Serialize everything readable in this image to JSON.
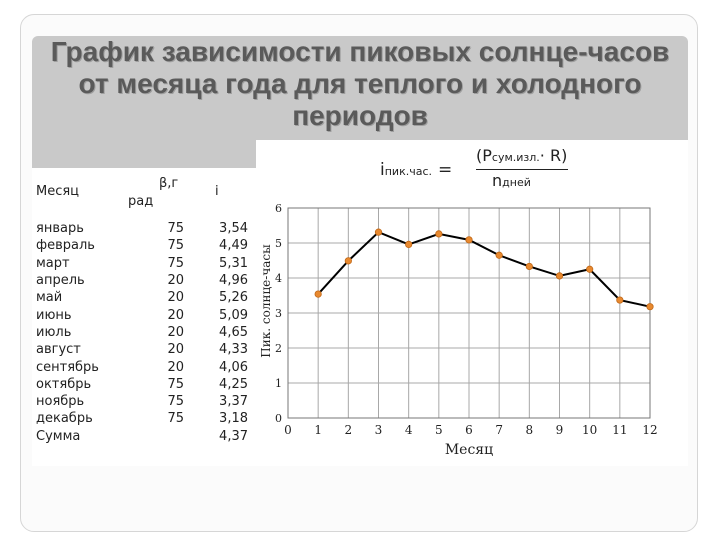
{
  "title": "График зависимости пиковых солнце-часов от месяца года для теплого и холодного периодов",
  "table": {
    "headers": {
      "month": "Месяц",
      "beta_line1": "β,г",
      "beta_line2": "рад",
      "i": "i"
    },
    "rows": [
      {
        "month": "январь",
        "beta": "75",
        "i": "3,54"
      },
      {
        "month": "февраль",
        "beta": "75",
        "i": "4,49"
      },
      {
        "month": "март",
        "beta": "75",
        "i": "5,31"
      },
      {
        "month": "апрель",
        "beta": "20",
        "i": "4,96"
      },
      {
        "month": "май",
        "beta": "20",
        "i": "5,26"
      },
      {
        "month": "июнь",
        "beta": "20",
        "i": "5,09"
      },
      {
        "month": "июль",
        "beta": "20",
        "i": "4,65"
      },
      {
        "month": "август",
        "beta": "20",
        "i": "4,33"
      },
      {
        "month": "сентябрь",
        "beta": "20",
        "i": "4,06"
      },
      {
        "month": "октябрь",
        "beta": "75",
        "i": "4,25"
      },
      {
        "month": "ноябрь",
        "beta": "75",
        "i": "3,37"
      },
      {
        "month": "декабрь",
        "beta": "75",
        "i": "3,18"
      },
      {
        "month": "Сумма",
        "beta": "",
        "i": "4,37"
      }
    ]
  },
  "formula": {
    "lhs_main": "i",
    "lhs_sub": "пик.час.",
    "num_open": "(P",
    "num_sub": "сум.изл.",
    "num_rest": "· R)",
    "den_main": "n",
    "den_sub": "дней"
  },
  "chart_data": {
    "type": "line",
    "xlabel": "Месяц",
    "ylabel": "Пик. солнце-часы",
    "xlim": [
      0,
      12
    ],
    "ylim": [
      0,
      6
    ],
    "xticks": [
      "0",
      "1",
      "2",
      "3",
      "4",
      "5",
      "6",
      "7",
      "8",
      "9",
      "10",
      "11",
      "12"
    ],
    "yticks": [
      "0",
      "1",
      "2",
      "3",
      "4",
      "5",
      "6"
    ],
    "grid": true,
    "line_color": "#000000",
    "marker_color": "#e8892f",
    "x": [
      1,
      2,
      3,
      4,
      5,
      6,
      7,
      8,
      9,
      10,
      11,
      12
    ],
    "y": [
      3.54,
      4.49,
      5.31,
      4.96,
      5.26,
      5.09,
      4.65,
      4.33,
      4.06,
      4.25,
      3.37,
      3.18
    ]
  }
}
